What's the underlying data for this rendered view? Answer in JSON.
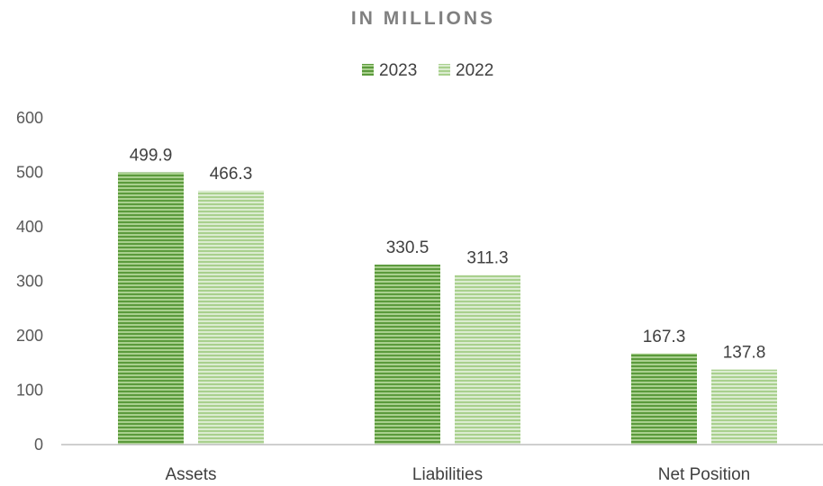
{
  "chart_data": {
    "type": "bar",
    "title": "IN MILLIONS",
    "xlabel": "",
    "ylabel": "",
    "categories": [
      "Assets",
      "Liabilities",
      "Net Position"
    ],
    "series": [
      {
        "name": "2023",
        "values": [
          499.9,
          330.5,
          167.3
        ],
        "color": "#5b9a3c",
        "stripe": "#a9d08e"
      },
      {
        "name": "2022",
        "values": [
          466.3,
          311.3,
          137.8
        ],
        "color": "#a9d08e",
        "stripe": "#dbecd0"
      }
    ],
    "ylim": [
      0,
      600
    ],
    "yticks": [
      0,
      100,
      200,
      300,
      400,
      500,
      600
    ],
    "data_labels": [
      [
        "499.9",
        "330.5",
        "167.3"
      ],
      [
        "466.3",
        "311.3",
        "137.8"
      ]
    ],
    "grid": false,
    "legend_position": "top-center",
    "axis_color": "#bfbfbf"
  }
}
